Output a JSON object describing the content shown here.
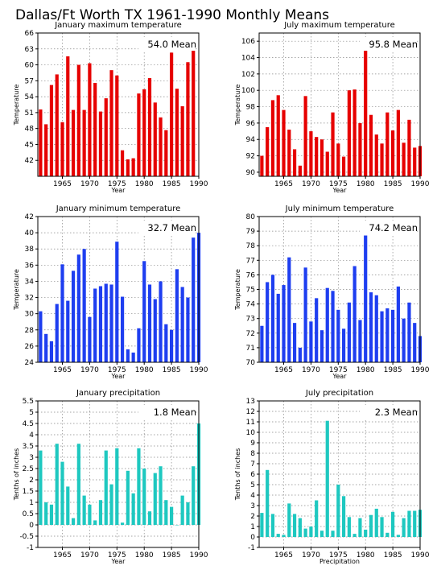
{
  "page_title": "Dallas/Ft Worth TX  1961-1990 Monthly Means",
  "colors": {
    "red": "#e60000",
    "blue": "#1e3ef0",
    "cyan": "#1ec8c0"
  },
  "chart_data": [
    {
      "type": "bar",
      "title": "January maximum temperature",
      "xlabel": "Year",
      "ylabel": "Temperature",
      "mean_label": "54.0  Mean",
      "color": "#e60000",
      "xlim": [
        1960.5,
        1990
      ],
      "ylim": [
        39,
        66
      ],
      "yticks": [
        42,
        45,
        48,
        51,
        54,
        57,
        60,
        63,
        66
      ],
      "xticks": [
        1965,
        1970,
        1975,
        1980,
        1985,
        1990
      ],
      "x": [
        1961,
        1962,
        1963,
        1964,
        1965,
        1966,
        1967,
        1968,
        1969,
        1970,
        1971,
        1972,
        1973,
        1974,
        1975,
        1976,
        1977,
        1978,
        1979,
        1980,
        1981,
        1982,
        1983,
        1984,
        1985,
        1986,
        1987,
        1988,
        1989,
        1990
      ],
      "values": [
        51.6,
        48.8,
        56.2,
        58.2,
        49.2,
        61.6,
        51.5,
        60.0,
        51.5,
        60.3,
        56.6,
        51.2,
        53.7,
        59.0,
        58.0,
        43.9,
        42.2,
        42.4,
        54.6,
        55.4,
        57.5,
        52.9,
        50.1,
        47.7,
        62.3,
        55.5,
        52.2,
        60.5,
        63.8,
        null
      ]
    },
    {
      "type": "bar",
      "title": "July maximum temperature",
      "xlabel": "Year",
      "ylabel": "Temperature",
      "mean_label": "95.8  Mean",
      "color": "#e60000",
      "xlim": [
        1960.5,
        1990
      ],
      "ylim": [
        89.5,
        107
      ],
      "yticks": [
        90,
        92,
        94,
        96,
        98,
        100,
        102,
        104,
        106
      ],
      "xticks": [
        1965,
        1970,
        1975,
        1980,
        1985,
        1990
      ],
      "x": [
        1961,
        1962,
        1963,
        1964,
        1965,
        1966,
        1967,
        1968,
        1969,
        1970,
        1971,
        1972,
        1973,
        1974,
        1975,
        1976,
        1977,
        1978,
        1979,
        1980,
        1981,
        1982,
        1983,
        1984,
        1985,
        1986,
        1987,
        1988,
        1989,
        1990
      ],
      "values": [
        92.0,
        95.5,
        98.8,
        99.4,
        97.6,
        95.2,
        92.8,
        90.8,
        99.3,
        95.0,
        94.3,
        94.0,
        92.5,
        97.3,
        93.5,
        91.9,
        100.0,
        100.1,
        96.0,
        105.3,
        97.0,
        94.6,
        93.5,
        97.3,
        95.1,
        97.6,
        93.6,
        96.4,
        93.0,
        93.2
      ]
    },
    {
      "type": "bar",
      "title": "January minimum temperature",
      "xlabel": "Year",
      "ylabel": "Temperature",
      "mean_label": "32.7  Mean",
      "color": "#1e3ef0",
      "xlim": [
        1960.5,
        1990
      ],
      "ylim": [
        24,
        42
      ],
      "yticks": [
        24,
        26,
        28,
        30,
        32,
        34,
        36,
        38,
        40,
        42
      ],
      "xticks": [
        1965,
        1970,
        1975,
        1980,
        1985,
        1990
      ],
      "x": [
        1961,
        1962,
        1963,
        1964,
        1965,
        1966,
        1967,
        1968,
        1969,
        1970,
        1971,
        1972,
        1973,
        1974,
        1975,
        1976,
        1977,
        1978,
        1979,
        1980,
        1981,
        1982,
        1983,
        1984,
        1985,
        1986,
        1987,
        1988,
        1989,
        1990
      ],
      "values": [
        30.3,
        27.5,
        26.6,
        31.2,
        36.1,
        31.6,
        35.3,
        37.3,
        38.0,
        29.6,
        33.1,
        33.4,
        33.7,
        33.6,
        38.9,
        32.1,
        25.6,
        25.2,
        28.2,
        36.5,
        33.6,
        31.8,
        34.0,
        28.7,
        28.0,
        35.5,
        33.3,
        32.0,
        39.4,
        40.0
      ]
    },
    {
      "type": "bar",
      "title": "July minimum temperature",
      "xlabel": "Year",
      "ylabel": "Temperature",
      "mean_label": "74.2  Mean",
      "color": "#1e3ef0",
      "xlim": [
        1960.5,
        1990
      ],
      "ylim": [
        70,
        80
      ],
      "yticks": [
        70,
        71,
        72,
        73,
        74,
        75,
        76,
        77,
        78,
        79,
        80
      ],
      "xticks": [
        1965,
        1970,
        1975,
        1980,
        1985,
        1990
      ],
      "x": [
        1961,
        1962,
        1963,
        1964,
        1965,
        1966,
        1967,
        1968,
        1969,
        1970,
        1971,
        1972,
        1973,
        1974,
        1975,
        1976,
        1977,
        1978,
        1979,
        1980,
        1981,
        1982,
        1983,
        1984,
        1985,
        1986,
        1987,
        1988,
        1989,
        1990
      ],
      "values": [
        72.5,
        75.5,
        76.0,
        74.7,
        75.3,
        77.2,
        72.7,
        71.0,
        76.5,
        72.8,
        74.4,
        72.2,
        75.1,
        74.9,
        73.6,
        72.3,
        74.1,
        76.6,
        72.9,
        78.7,
        74.8,
        74.6,
        73.5,
        73.7,
        73.6,
        75.2,
        73.0,
        74.1,
        72.7,
        71.8
      ]
    },
    {
      "type": "bar",
      "title": "January precipitation",
      "xlabel": "Year",
      "ylabel": "Tenths of inches",
      "mean_label": "1.8  Mean",
      "color": "#1ec8c0",
      "xlim": [
        1960.5,
        1990
      ],
      "ylim": [
        -1,
        5.5
      ],
      "yticks": [
        -1,
        -0.5,
        0,
        0.5,
        1,
        1.5,
        2,
        2.5,
        3,
        3.5,
        4,
        4.5,
        5,
        5.5
      ],
      "xticks": [
        1965,
        1970,
        1975,
        1980,
        1985,
        1990
      ],
      "x": [
        1961,
        1962,
        1963,
        1964,
        1965,
        1966,
        1967,
        1968,
        1969,
        1970,
        1971,
        1972,
        1973,
        1974,
        1975,
        1976,
        1977,
        1978,
        1979,
        1980,
        1981,
        1982,
        1983,
        1984,
        1985,
        1986,
        1987,
        1988,
        1989,
        1990
      ],
      "values": [
        3.3,
        1.0,
        0.9,
        3.6,
        2.8,
        1.7,
        0.3,
        3.6,
        1.3,
        0.9,
        0.2,
        1.1,
        3.3,
        1.8,
        3.4,
        0.1,
        2.4,
        1.4,
        3.4,
        2.5,
        0.6,
        2.3,
        2.6,
        1.1,
        0.8,
        0.0,
        1.3,
        1.0,
        2.6,
        4.5
      ]
    },
    {
      "type": "bar",
      "title": "July precipitation",
      "xlabel": "Precipitation",
      "ylabel": "Tenths of inches",
      "mean_label": "2.3  Mean",
      "color": "#1ec8c0",
      "xlim": [
        1960.5,
        1990
      ],
      "ylim": [
        -1,
        13
      ],
      "yticks": [
        -1,
        0,
        1,
        2,
        3,
        4,
        5,
        6,
        7,
        8,
        9,
        10,
        11,
        12,
        13
      ],
      "xticks": [
        1965,
        1970,
        1975,
        1980,
        1985,
        1990
      ],
      "x": [
        1961,
        1962,
        1963,
        1964,
        1965,
        1966,
        1967,
        1968,
        1969,
        1970,
        1971,
        1972,
        1973,
        1974,
        1975,
        1976,
        1977,
        1978,
        1979,
        1980,
        1981,
        1982,
        1983,
        1984,
        1985,
        1986,
        1987,
        1988,
        1989,
        1990
      ],
      "values": [
        2.3,
        6.4,
        2.2,
        0.3,
        0.2,
        3.2,
        2.2,
        1.8,
        0.8,
        1.0,
        3.5,
        0.6,
        11.1,
        0.6,
        5.0,
        3.9,
        1.9,
        0.3,
        1.8,
        0.7,
        2.1,
        2.7,
        1.9,
        0.4,
        2.4,
        0.2,
        1.8,
        2.5,
        2.5,
        2.6
      ]
    }
  ]
}
